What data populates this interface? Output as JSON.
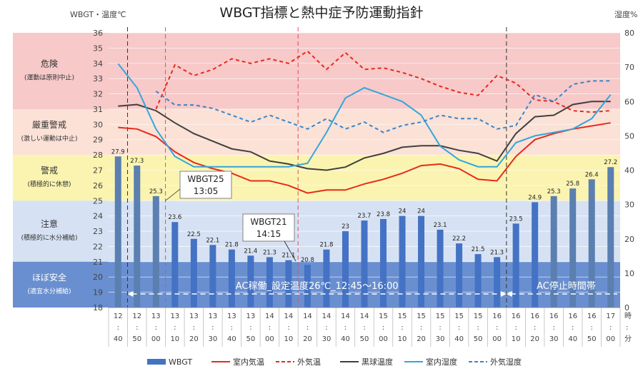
{
  "chart_data": {
    "type": "bar",
    "title": "WBGT指標と熱中症予防運動指針",
    "y_left_label": "WBGT・温度℃",
    "y_right_label": "湿度%",
    "x_unit_hour": "時",
    "x_unit_colon": ":",
    "x_unit_minute": "分",
    "ylim_left": [
      18,
      36
    ],
    "ylim_right": [
      0,
      80
    ],
    "y_left_ticks": [
      18,
      19,
      20,
      21,
      22,
      23,
      24,
      25,
      26,
      27,
      28,
      29,
      30,
      31,
      32,
      33,
      34,
      35,
      36
    ],
    "y_right_ticks": [
      0,
      10,
      20,
      30,
      40,
      50,
      60,
      70,
      80
    ],
    "categories": [
      {
        "h": "12",
        "m": "40"
      },
      {
        "h": "12",
        "m": "50"
      },
      {
        "h": "13",
        "m": "00"
      },
      {
        "h": "13",
        "m": "10"
      },
      {
        "h": "13",
        "m": "20"
      },
      {
        "h": "13",
        "m": "30"
      },
      {
        "h": "13",
        "m": "40"
      },
      {
        "h": "13",
        "m": "50"
      },
      {
        "h": "14",
        "m": "00"
      },
      {
        "h": "14",
        "m": "10"
      },
      {
        "h": "14",
        "m": "20"
      },
      {
        "h": "14",
        "m": "30"
      },
      {
        "h": "14",
        "m": "40"
      },
      {
        "h": "14",
        "m": "50"
      },
      {
        "h": "15",
        "m": "00"
      },
      {
        "h": "15",
        "m": "10"
      },
      {
        "h": "15",
        "m": "20"
      },
      {
        "h": "15",
        "m": "30"
      },
      {
        "h": "15",
        "m": "40"
      },
      {
        "h": "15",
        "m": "50"
      },
      {
        "h": "16",
        "m": "00"
      },
      {
        "h": "16",
        "m": "10"
      },
      {
        "h": "16",
        "m": "20"
      },
      {
        "h": "16",
        "m": "30"
      },
      {
        "h": "16",
        "m": "40"
      },
      {
        "h": "16",
        "m": "50"
      },
      {
        "h": "17",
        "m": "00"
      }
    ],
    "bands": [
      {
        "from": 31,
        "to": 36,
        "color": "#f7c9c9",
        "label": "危険",
        "sub": "(運動は原則中止)"
      },
      {
        "from": 28,
        "to": 31,
        "color": "#fbe1d6",
        "label": "厳重警戒",
        "sub": "(激しい運動は中止)"
      },
      {
        "from": 25,
        "to": 28,
        "color": "#faf4b0",
        "label": "警戒",
        "sub": "(積極的に休憩)"
      },
      {
        "from": 21,
        "to": 25,
        "color": "#d6e2f3",
        "label": "注意",
        "sub": "(積極的に水分補給)"
      },
      {
        "from": 18,
        "to": 21,
        "color": "#6a8fd0",
        "label": "ほぼ安全",
        "sub": "(適宜水分補給)"
      }
    ],
    "series": [
      {
        "name": "WBGT",
        "type": "bar",
        "axis": "left",
        "color": "#4472c4",
        "values": [
          27.9,
          27.3,
          25.3,
          23.6,
          22.5,
          22.1,
          21.8,
          21.4,
          21.3,
          21.1,
          20.8,
          21.8,
          23,
          23.7,
          23.8,
          24,
          24,
          23.1,
          22.2,
          21.5,
          21.3,
          23.5,
          24.9,
          25.3,
          25.8,
          26.4,
          27.2
        ]
      },
      {
        "name": "室内気温",
        "type": "line",
        "axis": "left",
        "color": "#e8291c",
        "dash": false,
        "values": [
          29.8,
          29.7,
          29.2,
          28.2,
          27.5,
          27.1,
          26.8,
          26.3,
          26.3,
          26.0,
          25.5,
          25.7,
          25.7,
          26.1,
          26.4,
          26.8,
          27.3,
          27.4,
          27.1,
          26.4,
          26.3,
          27.9,
          29.0,
          29.4,
          29.7,
          29.9,
          30.1
        ]
      },
      {
        "name": "外気温",
        "type": "line",
        "axis": "left",
        "color": "#e8291c",
        "dash": true,
        "values": [
          null,
          null,
          31.0,
          33.9,
          33.2,
          33.6,
          34.3,
          34.0,
          34.3,
          34.0,
          34.8,
          33.6,
          34.7,
          33.6,
          33.7,
          33.4,
          33.0,
          32.5,
          32.1,
          31.9,
          33.2,
          32.7,
          31.6,
          31.5,
          30.9,
          30.8,
          30.9
        ]
      },
      {
        "name": "黒球温度",
        "type": "line",
        "axis": "left",
        "color": "#404040",
        "dash": false,
        "values": [
          31.2,
          31.3,
          30.9,
          30.1,
          29.4,
          28.9,
          28.4,
          28.2,
          27.6,
          27.4,
          27.1,
          27.0,
          27.2,
          27.8,
          28.1,
          28.5,
          28.6,
          28.6,
          28.3,
          28.1,
          27.6,
          29.4,
          30.5,
          30.6,
          31.3,
          31.5,
          31.5
        ]
      },
      {
        "name": "室内湿度",
        "type": "line",
        "axis": "right",
        "color": "#35a6dc",
        "dash": false,
        "values": [
          71,
          64,
          52,
          44,
          41,
          41,
          41,
          41,
          41,
          41,
          42,
          51,
          61,
          64,
          62,
          60,
          56,
          47,
          43,
          41,
          41,
          48,
          50,
          51,
          52,
          55,
          62
        ]
      },
      {
        "name": "外気湿度",
        "type": "line",
        "axis": "right",
        "color": "#3b84c9",
        "dash": true,
        "values": [
          null,
          null,
          63,
          59,
          59,
          58,
          56,
          54,
          56,
          54,
          52,
          55,
          52,
          54,
          51,
          53,
          54,
          56,
          55,
          55,
          52,
          53,
          62,
          60,
          65,
          66,
          66
        ]
      }
    ],
    "annotations": [
      {
        "lines": [
          "WBGT25",
          "13:05"
        ]
      },
      {
        "lines": [
          "WBGT21",
          "14:15"
        ]
      }
    ],
    "period_labels": {
      "ac_on": "AC稼働_設定温度26℃_12:45～16:00",
      "ac_off": "AC停止時間帯"
    }
  }
}
